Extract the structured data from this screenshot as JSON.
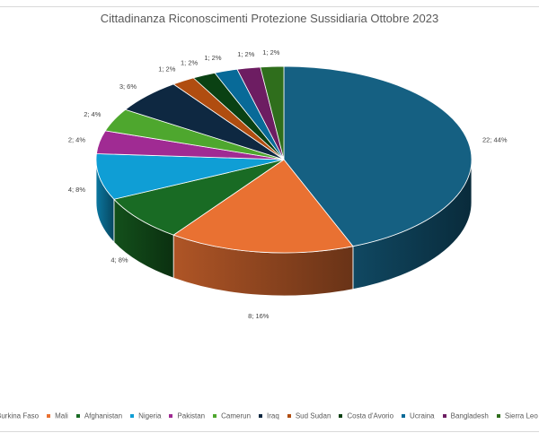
{
  "chart_data": {
    "type": "pie",
    "title": "Cittadinanza Riconoscimenti Protezione Sussidiaria Ottobre 2023",
    "categories": [
      "Burkina Faso",
      "Mali",
      "Afghanistan",
      "Nigeria",
      "Pakistan",
      "Camerun",
      "Iraq",
      "Sud Sudan",
      "Costa d'Avorio",
      "Ucraina",
      "Bangladesh",
      "Sierra Leone"
    ],
    "values": [
      22,
      8,
      4,
      4,
      2,
      2,
      3,
      1,
      1,
      1,
      1,
      1
    ],
    "data_labels": [
      "22; 44%",
      "8; 16%",
      "4; 8%",
      "4; 8%",
      "2; 4%",
      "2; 4%",
      "3; 6%",
      "1; 2%",
      "1; 2%",
      "1; 2%",
      "1; 2%",
      "1; 2%"
    ],
    "colors": [
      "#156082",
      "#E97132",
      "#196B24",
      "#0F9ED5",
      "#A02B93",
      "#4EA72E",
      "#0E2841",
      "#B04D10",
      "#0A4113",
      "#086A98",
      "#6D1D62",
      "#2F6E1C"
    ],
    "legend_labels": [
      "Burkina Faso",
      "Mali",
      "Afghanistan",
      "Nigeria",
      "Pakistan",
      "Camerun",
      "Iraq",
      "Sud Sudan",
      "Costa d'Avorio",
      "Ucraina",
      "Bangladesh",
      "Sierra Leo"
    ],
    "legend_position": "bottom",
    "style": "3d-pie"
  }
}
